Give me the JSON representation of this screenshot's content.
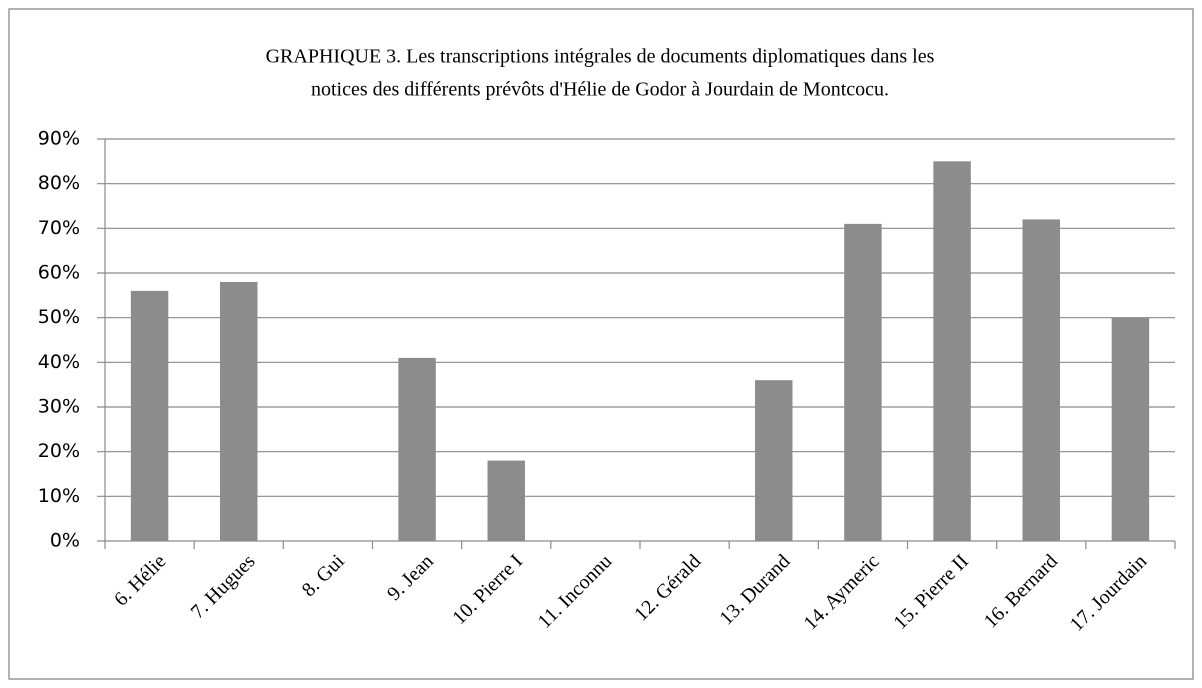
{
  "chart_data": {
    "type": "bar",
    "title": [
      "GRAPHIQUE 3. Les transcriptions intégrales de documents diplomatiques dans les",
      "notices des différents prévôts d'Hélie de Godor à Jourdain de Montcocu."
    ],
    "categories": [
      "6. Hélie",
      "7. Hugues",
      "8. Gui",
      "9. Jean",
      "10. Pierre I",
      "11. Inconnu",
      "12. Gérald",
      "13. Durand",
      "14. Aymeric",
      "15. Pierre II",
      "16. Bernard",
      "17. Jourdain"
    ],
    "values": [
      56,
      58,
      0,
      41,
      18,
      0,
      0,
      36,
      71,
      85,
      72,
      50
    ],
    "color": "#8c8c8c",
    "ylim": [
      0,
      90
    ],
    "yticks": [
      {
        "value": 0,
        "label": "0%"
      },
      {
        "value": 10,
        "label": "10%"
      },
      {
        "value": 20,
        "label": "20%"
      },
      {
        "value": 30,
        "label": "30%"
      },
      {
        "value": 40,
        "label": "40%"
      },
      {
        "value": 50,
        "label": "50%"
      },
      {
        "value": 60,
        "label": "60%"
      },
      {
        "value": 70,
        "label": "70%"
      },
      {
        "value": 80,
        "label": "80%"
      },
      {
        "value": 90,
        "label": "90%"
      }
    ],
    "grid": true
  }
}
